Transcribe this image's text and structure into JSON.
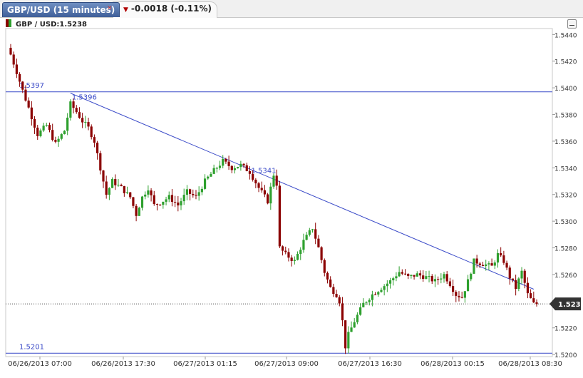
{
  "header": {
    "tab_label": "GBP/USD (15 minutes)",
    "change_text": "-0.0018 (-0.11%)"
  },
  "legend": {
    "label": "GBP / USD:1.5238"
  },
  "colors": {
    "up": "#2ea02e",
    "down": "#8b0000",
    "trend": "#3b4bc8",
    "last_tag": "#333333"
  },
  "chart_data": {
    "type": "candlestick",
    "instrument": "GBP/USD",
    "interval": "15 minutes",
    "ylim": [
      1.5199,
      1.5445
    ],
    "y_ticks": [
      1.544,
      1.542,
      1.54,
      1.538,
      1.536,
      1.534,
      1.532,
      1.53,
      1.528,
      1.526,
      1.524,
      1.522,
      1.52
    ],
    "x_ticks": [
      "06/26/2013 07:00",
      "06/26/2013 17:30",
      "06/27/2013 01:15",
      "06/27/2013 09:00",
      "06/27/2013 16:30",
      "06/28/2013 00:15",
      "06/28/2013 08:30"
    ],
    "last_price": 1.5238,
    "horizontal_lines": [
      {
        "value": 1.5397,
        "label": "1.5397"
      },
      {
        "value": 1.5201,
        "label": "1.5201"
      }
    ],
    "trendline": {
      "from_bar": 20,
      "from_value": 1.5396,
      "to_bar": 175,
      "to_value": 1.5249
    },
    "annotations": [
      {
        "bar": 20,
        "value": 1.5396,
        "label": "1.5396"
      },
      {
        "bar": 80,
        "value": 1.5341,
        "label": "1.5341"
      }
    ],
    "key_closes": [
      [
        0,
        1.5425
      ],
      [
        2,
        1.5412
      ],
      [
        4,
        1.5398
      ],
      [
        6,
        1.5385
      ],
      [
        9,
        1.5365
      ],
      [
        12,
        1.5372
      ],
      [
        15,
        1.5358
      ],
      [
        18,
        1.5368
      ],
      [
        20,
        1.5388
      ],
      [
        22,
        1.5382
      ],
      [
        24,
        1.5375
      ],
      [
        26,
        1.537
      ],
      [
        28,
        1.536
      ],
      [
        30,
        1.534
      ],
      [
        32,
        1.532
      ],
      [
        34,
        1.533
      ],
      [
        37,
        1.5325
      ],
      [
        40,
        1.5318
      ],
      [
        42,
        1.5305
      ],
      [
        44,
        1.5318
      ],
      [
        46,
        1.5325
      ],
      [
        48,
        1.5312
      ],
      [
        50,
        1.5314
      ],
      [
        53,
        1.5318
      ],
      [
        56,
        1.5312
      ],
      [
        59,
        1.5322
      ],
      [
        62,
        1.5318
      ],
      [
        65,
        1.533
      ],
      [
        68,
        1.5338
      ],
      [
        71,
        1.5345
      ],
      [
        74,
        1.534
      ],
      [
        77,
        1.5342
      ],
      [
        80,
        1.5337
      ],
      [
        83,
        1.5325
      ],
      [
        86,
        1.5315
      ],
      [
        88,
        1.5335
      ],
      [
        89,
        1.5328
      ],
      [
        90,
        1.528
      ],
      [
        92,
        1.5275
      ],
      [
        95,
        1.527
      ],
      [
        98,
        1.5285
      ],
      [
        101,
        1.5295
      ],
      [
        103,
        1.528
      ],
      [
        105,
        1.5262
      ],
      [
        107,
        1.525
      ],
      [
        109,
        1.5245
      ],
      [
        110,
        1.524
      ],
      [
        111,
        1.5225
      ],
      [
        112,
        1.5206
      ],
      [
        113,
        1.5215
      ],
      [
        115,
        1.5225
      ],
      [
        118,
        1.5238
      ],
      [
        121,
        1.5245
      ],
      [
        124,
        1.525
      ],
      [
        127,
        1.5255
      ],
      [
        130,
        1.5262
      ],
      [
        133,
        1.5258
      ],
      [
        136,
        1.526
      ],
      [
        139,
        1.5258
      ],
      [
        142,
        1.5255
      ],
      [
        145,
        1.526
      ],
      [
        147,
        1.5253
      ],
      [
        149,
        1.5245
      ],
      [
        151,
        1.5243
      ],
      [
        153,
        1.5255
      ],
      [
        155,
        1.527
      ],
      [
        158,
        1.5268
      ],
      [
        161,
        1.5266
      ],
      [
        163,
        1.5275
      ],
      [
        165,
        1.527
      ],
      [
        167,
        1.5258
      ],
      [
        169,
        1.525
      ],
      [
        171,
        1.5262
      ],
      [
        173,
        1.5245
      ],
      [
        175,
        1.5238
      ],
      [
        176,
        1.5238
      ]
    ]
  }
}
